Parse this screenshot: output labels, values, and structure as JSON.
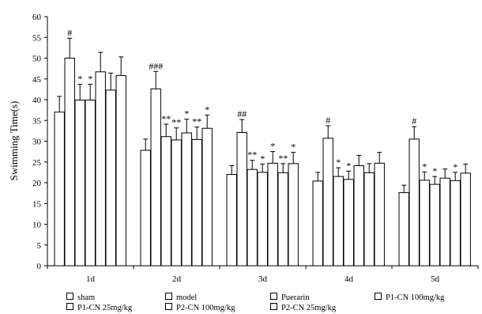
{
  "chart_data": {
    "type": "bar",
    "ylabel": "Swimming   Time(s)",
    "xlabel": "",
    "ylim": [
      0,
      60
    ],
    "yticks": [
      0,
      5,
      10,
      15,
      20,
      25,
      30,
      35,
      40,
      45,
      50,
      55,
      60
    ],
    "categories": [
      "1d",
      "2d",
      "3d",
      "4d",
      "5d"
    ],
    "legend_position": "bottom",
    "bar_fill": "#ffffff",
    "bar_stroke": "#000000",
    "series": [
      {
        "name": "sham",
        "values": [
          37.0,
          27.8,
          22.0,
          20.4,
          17.6
        ],
        "errors": [
          3.8,
          2.7,
          2.1,
          2.1,
          1.8
        ],
        "marks": [
          "",
          "",
          "",
          "",
          ""
        ]
      },
      {
        "name": "model",
        "values": [
          50.0,
          42.6,
          32.1,
          30.7,
          30.5
        ],
        "errors": [
          4.8,
          4.2,
          3.1,
          3.0,
          3.0
        ],
        "marks": [
          "#",
          "###",
          "##",
          "#",
          "#"
        ]
      },
      {
        "name": "Puerarin",
        "values": [
          39.9,
          31.1,
          23.2,
          21.5,
          20.6
        ],
        "errors": [
          3.8,
          3.0,
          2.2,
          2.1,
          2.0
        ],
        "marks": [
          "*",
          "**",
          "**",
          "*",
          "*"
        ]
      },
      {
        "name": "P1-CN 100mg/kg",
        "values": [
          39.9,
          30.3,
          22.5,
          20.8,
          19.6
        ],
        "errors": [
          3.8,
          2.9,
          2.0,
          2.0,
          1.9
        ],
        "marks": [
          "*",
          "**",
          "*",
          "*",
          "*"
        ]
      },
      {
        "name": "P1-CN 25mg/kg",
        "values": [
          46.7,
          32.0,
          24.7,
          24.1,
          21.1
        ],
        "errors": [
          4.7,
          3.3,
          2.8,
          2.5,
          2.2
        ],
        "marks": [
          "",
          "*",
          "*",
          "",
          ""
        ]
      },
      {
        "name": "P2-CN 100mg/kg",
        "values": [
          42.3,
          30.4,
          22.4,
          22.4,
          20.5
        ],
        "errors": [
          4.1,
          3.0,
          2.2,
          2.2,
          2.0
        ],
        "marks": [
          "",
          "**",
          "**",
          "",
          "*"
        ]
      },
      {
        "name": "P2-CN 25mg/kg",
        "values": [
          45.8,
          33.1,
          24.6,
          24.7,
          22.3
        ],
        "errors": [
          4.5,
          3.2,
          2.7,
          2.6,
          2.2
        ],
        "marks": [
          "",
          "*",
          "*",
          "",
          ""
        ]
      }
    ]
  }
}
